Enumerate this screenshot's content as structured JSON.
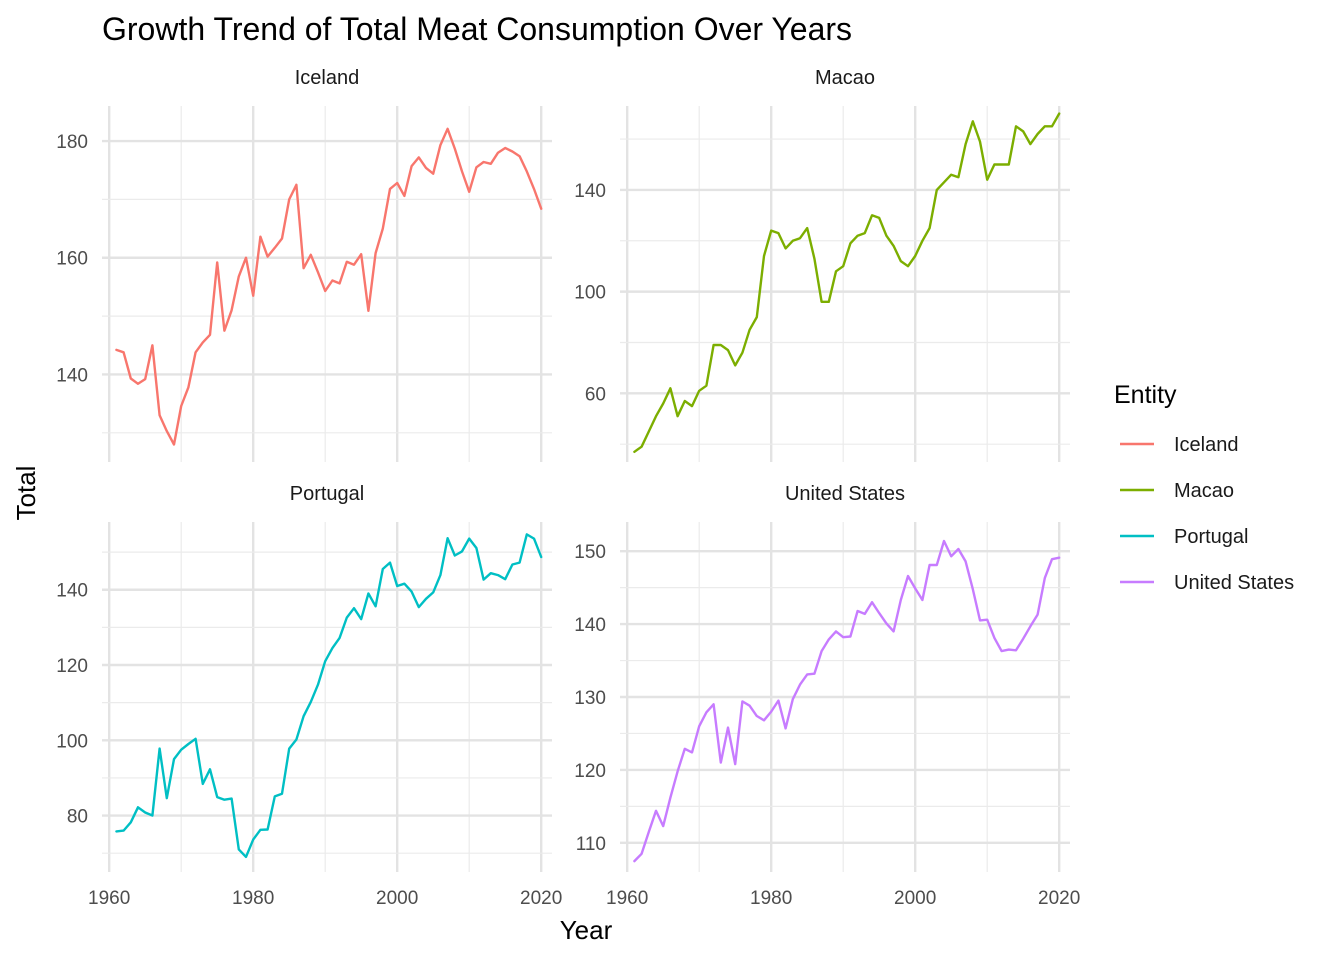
{
  "chart_data": {
    "type": "line",
    "title": "Growth Trend of Total Meat Consumption Over Years",
    "xlabel": "Year",
    "ylabel": "Total",
    "legend": {
      "title": "Entity",
      "position": "right",
      "entries": [
        "Iceland",
        "Macao",
        "Portugal",
        "United States"
      ]
    },
    "grid": true,
    "x_ticks": [
      1960,
      1980,
      2000,
      2020
    ],
    "xlim": [
      1959,
      2021.5
    ],
    "facets": [
      {
        "name": "Iceland",
        "color": "#F8766D",
        "ylim": [
          125,
          186
        ],
        "y_ticks": [
          140,
          160,
          180
        ],
        "x": [
          1961,
          1962,
          1963,
          1964,
          1965,
          1966,
          1967,
          1968,
          1969,
          1970,
          1971,
          1972,
          1973,
          1974,
          1975,
          1976,
          1977,
          1978,
          1979,
          1980,
          1981,
          1982,
          1983,
          1984,
          1985,
          1986,
          1987,
          1988,
          1989,
          1990,
          1991,
          1992,
          1993,
          1994,
          1995,
          1996,
          1997,
          1998,
          1999,
          2000,
          2001,
          2002,
          2003,
          2004,
          2005,
          2006,
          2007,
          2008,
          2009,
          2010,
          2011,
          2012,
          2013,
          2014,
          2015,
          2016,
          2017,
          2018,
          2019,
          2020
        ],
        "y": [
          144.2,
          143.8,
          139.3,
          138.4,
          139.2,
          145.0,
          133.0,
          130.3,
          128.0,
          134.6,
          137.8,
          143.8,
          145.5,
          146.8,
          159.2,
          147.5,
          151.0,
          156.8,
          160.0,
          153.5,
          163.6,
          160.2,
          161.7,
          163.3,
          170.0,
          172.5,
          158.2,
          160.5,
          157.5,
          154.3,
          156.1,
          155.6,
          159.3,
          158.8,
          160.6,
          150.9,
          160.8,
          165.0,
          171.8,
          172.8,
          170.6,
          175.7,
          177.2,
          175.4,
          174.4,
          179.3,
          182.1,
          178.7,
          174.8,
          171.3,
          175.5,
          176.4,
          176.1,
          178.0,
          178.8,
          178.2,
          177.4,
          174.8,
          171.8,
          168.4
        ]
      },
      {
        "name": "Macao",
        "color": "#7CAE00",
        "ylim": [
          33,
          173
        ],
        "y_ticks": [
          60,
          100,
          140
        ],
        "x": [
          1961,
          1962,
          1963,
          1964,
          1965,
          1966,
          1967,
          1968,
          1969,
          1970,
          1971,
          1972,
          1973,
          1974,
          1975,
          1976,
          1977,
          1978,
          1979,
          1980,
          1981,
          1982,
          1983,
          1984,
          1985,
          1986,
          1987,
          1988,
          1989,
          1990,
          1991,
          1992,
          1993,
          1994,
          1995,
          1996,
          1997,
          1998,
          1999,
          2000,
          2001,
          2002,
          2003,
          2004,
          2005,
          2006,
          2007,
          2008,
          2009,
          2010,
          2011,
          2012,
          2013,
          2014,
          2015,
          2016,
          2017,
          2018,
          2019,
          2020
        ],
        "y": [
          37,
          39,
          45,
          51,
          56,
          62,
          51,
          57,
          55,
          61,
          63,
          79,
          79,
          77,
          71,
          76,
          85,
          90,
          114,
          124,
          123,
          117,
          120,
          121,
          125,
          113,
          96,
          96,
          108,
          110,
          119,
          122,
          123,
          130,
          129,
          122,
          118,
          112,
          110,
          114,
          120,
          125,
          140,
          143,
          146,
          145,
          158,
          167,
          159,
          144,
          150,
          150,
          150,
          165,
          163,
          158,
          162,
          165,
          165,
          170
        ]
      },
      {
        "name": "Portugal",
        "color": "#00BFC4",
        "ylim": [
          65,
          158
        ],
        "y_ticks": [
          80,
          100,
          120,
          140
        ],
        "x": [
          1961,
          1962,
          1963,
          1964,
          1965,
          1966,
          1967,
          1968,
          1969,
          1970,
          1971,
          1972,
          1973,
          1974,
          1975,
          1976,
          1977,
          1978,
          1979,
          1980,
          1981,
          1982,
          1983,
          1984,
          1985,
          1986,
          1987,
          1988,
          1989,
          1990,
          1991,
          1992,
          1993,
          1994,
          1995,
          1996,
          1997,
          1998,
          1999,
          2000,
          2001,
          2002,
          2003,
          2004,
          2005,
          2006,
          2007,
          2008,
          2009,
          2010,
          2011,
          2012,
          2013,
          2014,
          2015,
          2016,
          2017,
          2018,
          2019,
          2020
        ],
        "y": [
          75.8,
          76.0,
          78.2,
          82.2,
          80.8,
          80.0,
          97.8,
          84.6,
          95.0,
          97.5,
          99.0,
          100.4,
          88.4,
          92.3,
          84.9,
          84.2,
          84.5,
          71.0,
          69.0,
          73.6,
          76.2,
          76.3,
          85.1,
          85.8,
          97.8,
          100.2,
          106.4,
          110.2,
          114.8,
          121.0,
          124.5,
          127.2,
          132.6,
          135.1,
          132.2,
          139.0,
          135.6,
          145.5,
          147.2,
          141.0,
          141.6,
          139.5,
          135.4,
          137.6,
          139.3,
          143.9,
          153.7,
          149.1,
          150.2,
          153.6,
          151.1,
          142.7,
          144.4,
          143.9,
          142.8,
          146.7,
          147.2,
          154.7,
          153.6,
          148.7
        ]
      },
      {
        "name": "United States",
        "color": "#C77CFF",
        "ylim": [
          106,
          154
        ],
        "y_ticks": [
          110,
          120,
          130,
          140,
          150
        ],
        "x": [
          1961,
          1962,
          1963,
          1964,
          1965,
          1966,
          1967,
          1968,
          1969,
          1970,
          1971,
          1972,
          1973,
          1974,
          1975,
          1976,
          1977,
          1978,
          1979,
          1980,
          1981,
          1982,
          1983,
          1984,
          1985,
          1986,
          1987,
          1988,
          1989,
          1990,
          1991,
          1992,
          1993,
          1994,
          1995,
          1996,
          1997,
          1998,
          1999,
          2000,
          2001,
          2002,
          2003,
          2004,
          2005,
          2006,
          2007,
          2008,
          2009,
          2010,
          2011,
          2012,
          2013,
          2014,
          2015,
          2016,
          2017,
          2018,
          2019,
          2020
        ],
        "y": [
          107.5,
          108.5,
          111.5,
          114.4,
          112.3,
          116.2,
          119.8,
          122.9,
          122.4,
          126.0,
          127.9,
          129.0,
          121.0,
          125.8,
          120.8,
          129.4,
          128.8,
          127.4,
          126.8,
          128.0,
          129.5,
          125.7,
          129.7,
          131.7,
          133.1,
          133.2,
          136.3,
          137.9,
          139.0,
          138.2,
          138.3,
          141.8,
          141.4,
          143.0,
          141.5,
          140.1,
          139.0,
          143.3,
          146.6,
          144.9,
          143.3,
          148.1,
          148.1,
          151.4,
          149.3,
          150.3,
          148.6,
          144.8,
          140.5,
          140.6,
          138.1,
          136.3,
          136.5,
          136.4,
          138.0,
          139.7,
          141.3,
          146.3,
          148.9,
          149.1
        ]
      }
    ]
  }
}
